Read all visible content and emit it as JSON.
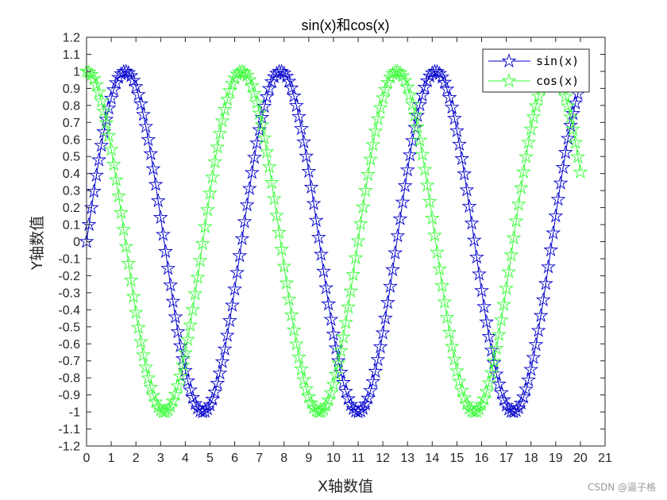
{
  "watermark": "CSDN @逼子格",
  "chart_data": {
    "type": "line",
    "title": "sin(x)和cos(x)",
    "xlabel": "X轴数值",
    "ylabel": "Y轴数值",
    "xlim": [
      0,
      21
    ],
    "ylim": [
      -1.2,
      1.2
    ],
    "x_ticks": [
      "0",
      "1",
      "2",
      "3",
      "4",
      "5",
      "6",
      "7",
      "8",
      "9",
      "10",
      "11",
      "12",
      "13",
      "14",
      "15",
      "16",
      "17",
      "18",
      "19",
      "20",
      "21"
    ],
    "y_ticks": [
      "-1.2",
      "-1.1",
      "-1",
      "-0.9",
      "-0.8",
      "-0.7",
      "-0.6",
      "-0.5",
      "-0.4",
      "-0.3",
      "-0.2",
      "-0.1",
      "0",
      "0.1",
      "0.2",
      "0.3",
      "0.4",
      "0.5",
      "0.6",
      "0.7",
      "0.8",
      "0.9",
      "1",
      "1.1",
      "1.2"
    ],
    "x_range": {
      "start": 0,
      "end": 20,
      "step": 0.1
    },
    "legend_position": "top-right",
    "grid": false,
    "series": [
      {
        "name": "sin(x)",
        "function": "sin",
        "color": "#0000cc",
        "marker": "pentagram",
        "line_style": "solid"
      },
      {
        "name": "cos(x)",
        "function": "cos",
        "color": "#33ff33",
        "marker": "pentagram",
        "line_style": "solid"
      }
    ]
  }
}
